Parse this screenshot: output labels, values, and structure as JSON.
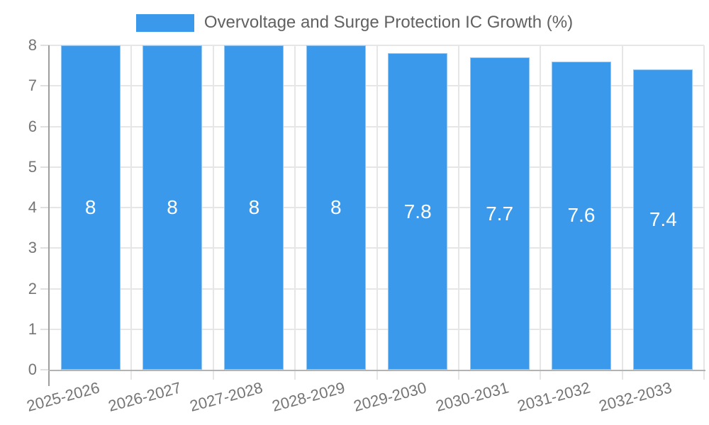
{
  "chart_data": {
    "type": "bar",
    "title": "Overvoltage and Surge Protection IC Growth (%)",
    "legend": {
      "label": "Overvoltage and Surge Protection IC Growth (%)",
      "position": "top",
      "swatch_color": "#3b99ec"
    },
    "categories": [
      "2025-2026",
      "2026-2027",
      "2027-2028",
      "2028-2029",
      "2029-2030",
      "2030-2031",
      "2031-2032",
      "2032-2033"
    ],
    "series": [
      {
        "name": "Overvoltage and Surge Protection IC Growth (%)",
        "values": [
          8,
          8,
          8,
          8,
          7.8,
          7.7,
          7.6,
          7.4
        ],
        "value_labels": [
          "8",
          "8",
          "8",
          "8",
          "7.8",
          "7.7",
          "7.6",
          "7.4"
        ]
      }
    ],
    "xlabel": "",
    "ylabel": "",
    "ylim": [
      0,
      8
    ],
    "yticks": [
      "0",
      "1",
      "2",
      "3",
      "4",
      "5",
      "6",
      "7",
      "8"
    ],
    "grid": true,
    "colors": {
      "bar": "#3b99ec",
      "bar_label": "#ffffff",
      "axis_text": "#757575",
      "gridline": "#e6e6e6",
      "baseline": "#b3b3b3",
      "y_axis_line": "#9e9e9e"
    }
  }
}
